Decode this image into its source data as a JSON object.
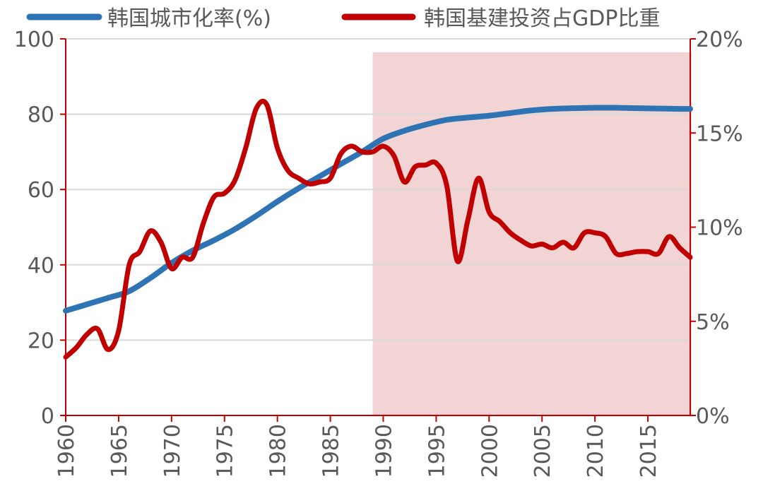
{
  "chart_data": {
    "type": "line",
    "title": "",
    "xlabel": "",
    "x_range": [
      1960,
      2019
    ],
    "x_ticks": [
      "1960",
      "1965",
      "1970",
      "1975",
      "1980",
      "1985",
      "1990",
      "1995",
      "2000",
      "2005",
      "2010",
      "2015"
    ],
    "y_left": {
      "label": "",
      "range": [
        0,
        100
      ],
      "ticks": [
        "0",
        "20",
        "40",
        "60",
        "80",
        "100"
      ]
    },
    "y_right": {
      "label": "",
      "range": [
        0,
        20
      ],
      "ticks": [
        "0%",
        "5%",
        "10%",
        "15%",
        "20%"
      ]
    },
    "grid": "horizontal",
    "legend_position": "top",
    "shaded_region": {
      "x_start": 1989,
      "x_end": 2019,
      "color": "#f2d4d4"
    },
    "series": [
      {
        "name": "韩国城市化率(%)",
        "axis": "left",
        "color": "#2e74b5",
        "x": [
          1960,
          1962,
          1964,
          1966,
          1968,
          1970,
          1972,
          1974,
          1976,
          1978,
          1980,
          1982,
          1984,
          1986,
          1988,
          1990,
          1992,
          1994,
          1996,
          1998,
          2000,
          2002,
          2004,
          2006,
          2008,
          2010,
          2012,
          2014,
          2016,
          2018,
          2019
        ],
        "y": [
          27.8,
          29.5,
          31.2,
          33.0,
          36.5,
          40.5,
          43.8,
          46.5,
          49.5,
          53.0,
          56.8,
          60.3,
          63.5,
          66.8,
          70.0,
          73.5,
          75.6,
          77.2,
          78.5,
          79.1,
          79.6,
          80.3,
          81.0,
          81.4,
          81.6,
          81.7,
          81.7,
          81.6,
          81.5,
          81.4,
          81.4
        ]
      },
      {
        "name": "韩国基建投资占GDP比重",
        "axis": "right",
        "color": "#c00000",
        "x": [
          1960,
          1961,
          1962,
          1963,
          1964,
          1965,
          1966,
          1967,
          1968,
          1969,
          1970,
          1971,
          1972,
          1973,
          1974,
          1975,
          1976,
          1977,
          1978,
          1979,
          1980,
          1981,
          1982,
          1983,
          1984,
          1985,
          1986,
          1987,
          1988,
          1989,
          1990,
          1991,
          1992,
          1993,
          1994,
          1995,
          1996,
          1997,
          1998,
          1999,
          2000,
          2001,
          2002,
          2003,
          2004,
          2005,
          2006,
          2007,
          2008,
          2009,
          2010,
          2011,
          2012,
          2013,
          2014,
          2015,
          2016,
          2017,
          2018,
          2019
        ],
        "y": [
          3.1,
          3.6,
          4.3,
          4.6,
          3.5,
          4.5,
          8.0,
          8.7,
          9.8,
          9.2,
          7.8,
          8.4,
          8.4,
          10.2,
          11.6,
          11.8,
          12.5,
          14.2,
          16.3,
          16.5,
          14.2,
          13.0,
          12.6,
          12.3,
          12.4,
          12.6,
          13.9,
          14.3,
          14.0,
          14.0,
          14.3,
          13.8,
          12.4,
          13.2,
          13.3,
          13.4,
          12.2,
          8.2,
          10.4,
          12.6,
          10.8,
          10.3,
          9.7,
          9.3,
          9.0,
          9.1,
          8.9,
          9.2,
          8.9,
          9.7,
          9.7,
          9.5,
          8.6,
          8.6,
          8.7,
          8.7,
          8.6,
          9.5,
          8.9,
          8.4
        ]
      }
    ]
  }
}
